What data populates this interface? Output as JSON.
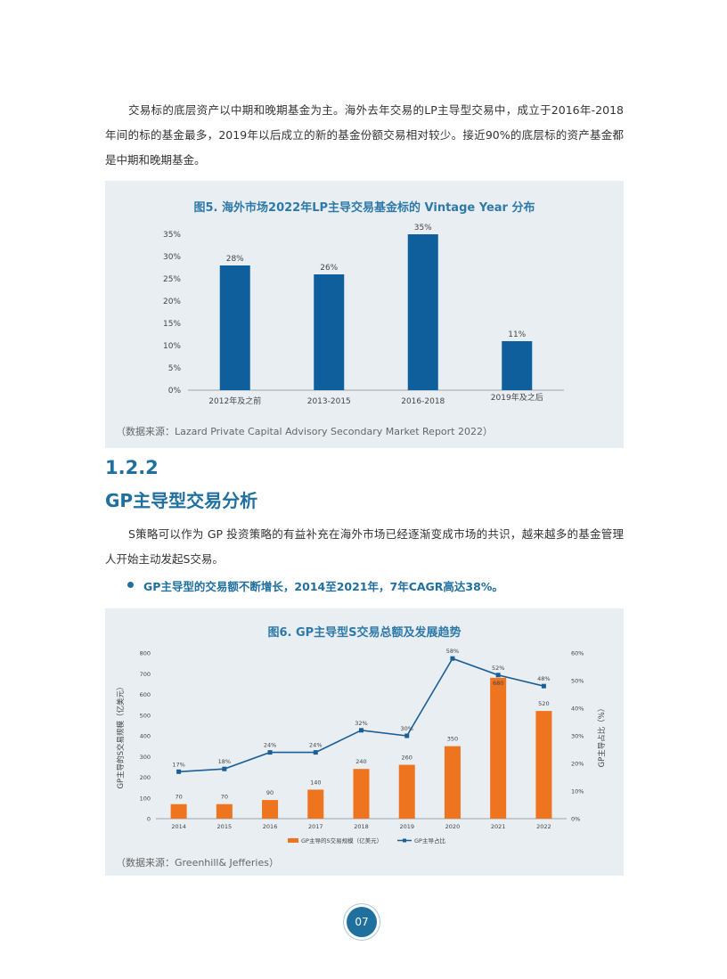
{
  "intro": {
    "paragraph": "交易标的底层资产以中期和晚期基金为主。海外去年交易的LP主导型交易中，成立于2016年-2018年间的标的基金最多，2019年以后成立的新的基金份额交易相对较少。接近90%的底层标的资产基金都是中期和晚期基金。"
  },
  "figure5": {
    "title": "图5. 海外市场2022年LP主导交易基金标的 Vintage Year 分布",
    "source": "（数据来源：Lazard Private Capital Advisory Secondary Market Report 2022）"
  },
  "section": {
    "number": "1.2.2",
    "title": "GP主导型交易分析",
    "paragraph": "S策略可以作为 GP 投资策略的有益补充在海外市场已经逐渐变成市场的共识，越来越多的基金管理人开始主动发起S交易。",
    "bullet": "GP主导型的交易额不断增长，2014至2021年，7年CAGR高达38%。"
  },
  "figure6": {
    "title": "图6. GP主导型S交易总额及发展趋势",
    "source": "（数据来源：Greenhill& Jefferies）"
  },
  "page_number": "07",
  "colors": {
    "bar_blue": "#0f5f9c",
    "bar_orange": "#ee7420",
    "line_blue": "#1b5f96",
    "title_blue": "#2e79a8",
    "panel_bg": "#e9eef2"
  },
  "chart_data": [
    {
      "type": "bar",
      "categories": [
        "2012年及之前",
        "2013-2015",
        "2016-2018",
        "2019年及之后"
      ],
      "values": [
        28,
        26,
        35,
        11
      ],
      "data_labels": [
        "28%",
        "26%",
        "35%",
        "11%"
      ],
      "y_ticks": [
        "0%",
        "5%",
        "10%",
        "15%",
        "20%",
        "25%",
        "30%",
        "35%"
      ],
      "ylim": [
        0,
        35
      ],
      "grid": false,
      "legend": "none"
    },
    {
      "type": "bar",
      "categories": [
        "2014",
        "2015",
        "2016",
        "2017",
        "2018",
        "2019",
        "2020",
        "2021",
        "2022"
      ],
      "series": [
        {
          "name": "GP主导的S交易规模（亿美元）",
          "type": "bar",
          "axis": "left",
          "values": [
            70,
            70,
            90,
            140,
            240,
            260,
            350,
            680,
            520
          ],
          "data_labels": [
            "70",
            "70",
            "90",
            "140",
            "240",
            "260",
            "350",
            "680",
            "520"
          ]
        },
        {
          "name": "GP主导占比",
          "type": "line",
          "axis": "right",
          "values": [
            17,
            18,
            24,
            24,
            32,
            30,
            58,
            52,
            48
          ],
          "data_labels": [
            "17%",
            "18%",
            "24%",
            "24%",
            "32%",
            "30%",
            "58%",
            "52%",
            "48%"
          ]
        }
      ],
      "ylabel": "GP主导的S交易规模（亿美元）",
      "y2label": "GP主导占比（%）",
      "ylim": [
        0,
        800
      ],
      "y2lim": [
        0,
        60
      ],
      "y_ticks": [
        "0",
        "100",
        "200",
        "300",
        "400",
        "500",
        "600",
        "700",
        "800"
      ],
      "y2_ticks": [
        "0%",
        "10%",
        "20%",
        "30%",
        "40%",
        "50%",
        "60%"
      ],
      "grid": false,
      "legend": "bottom"
    }
  ]
}
